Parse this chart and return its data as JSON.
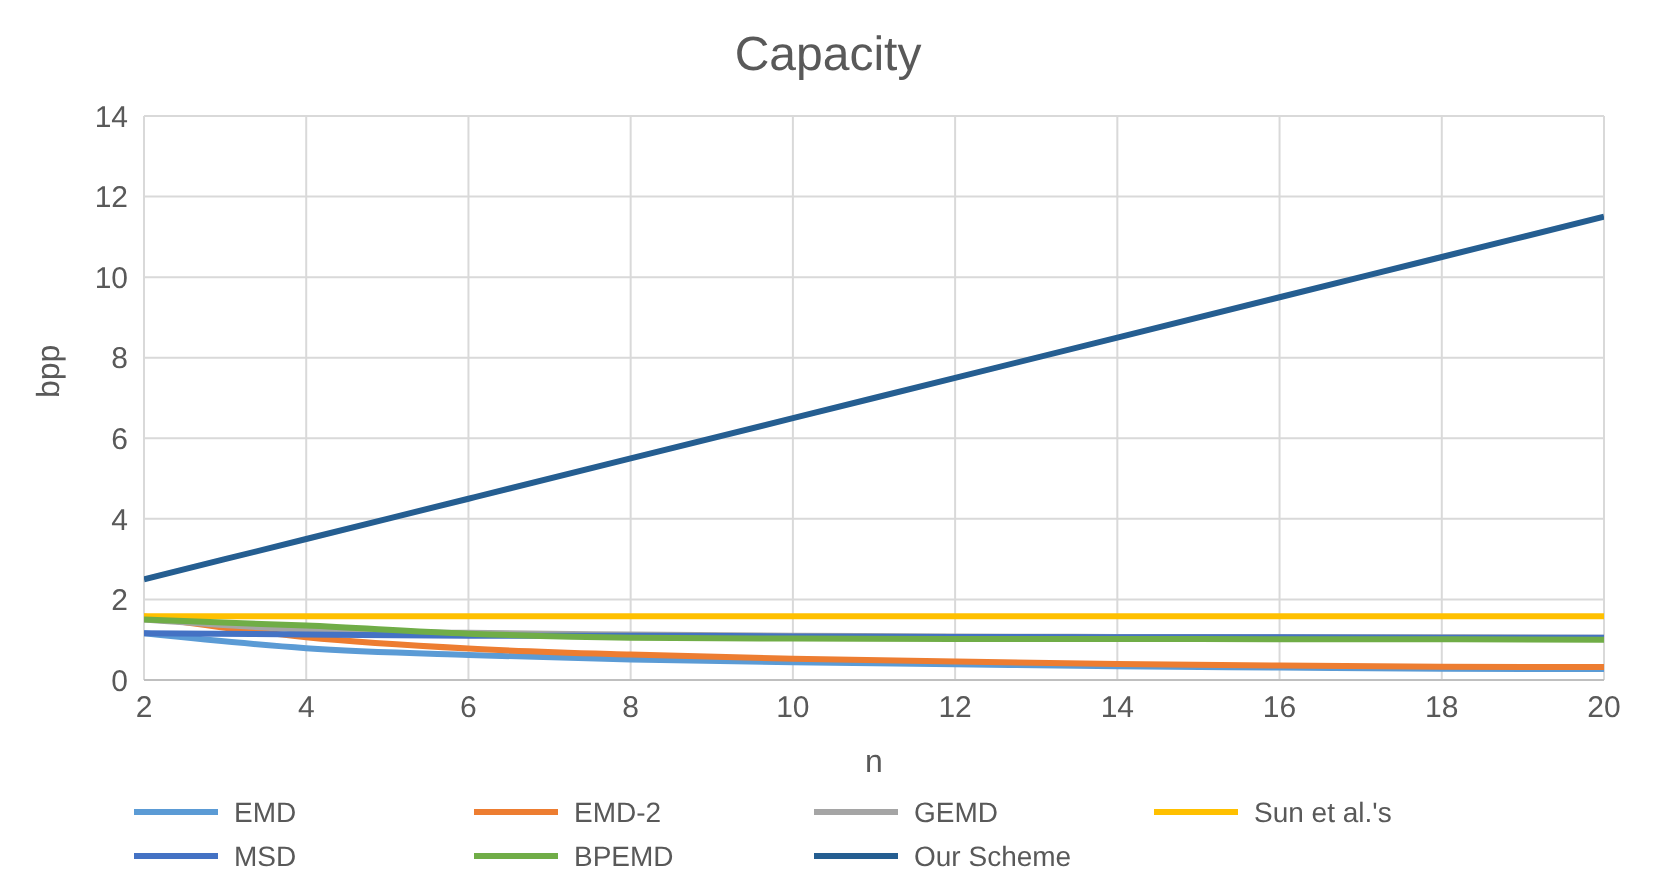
{
  "chart_data": {
    "type": "line",
    "title": "Capacity",
    "xlabel": "n",
    "ylabel": "bpp",
    "x": [
      2,
      4,
      6,
      8,
      10,
      12,
      14,
      16,
      18,
      20
    ],
    "series": [
      {
        "name": "EMD",
        "color": "#5b9bd5",
        "values": [
          1.16,
          0.79,
          0.62,
          0.51,
          0.44,
          0.39,
          0.34,
          0.31,
          0.28,
          0.27
        ]
      },
      {
        "name": "EMD-2",
        "color": "#ed7d31",
        "values": [
          1.58,
          1.06,
          0.78,
          0.63,
          0.53,
          0.46,
          0.4,
          0.36,
          0.33,
          0.32
        ]
      },
      {
        "name": "GEMD",
        "color": "#a5a5a5",
        "values": [
          1.5,
          1.25,
          1.17,
          1.13,
          1.1,
          1.08,
          1.07,
          1.06,
          1.06,
          1.05
        ]
      },
      {
        "name": "Sun et al.'s",
        "color": "#ffc000",
        "values": [
          1.58,
          1.58,
          1.58,
          1.58,
          1.58,
          1.58,
          1.58,
          1.58,
          1.58,
          1.58
        ]
      },
      {
        "name": "MSD",
        "color": "#4472c4",
        "values": [
          1.16,
          1.13,
          1.1,
          1.1,
          1.08,
          1.07,
          1.06,
          1.06,
          1.05,
          1.05
        ]
      },
      {
        "name": "BPEMD",
        "color": "#70ad47",
        "values": [
          1.5,
          1.35,
          1.15,
          1.05,
          1.03,
          1.02,
          1.02,
          1.01,
          1.01,
          1.0
        ]
      },
      {
        "name": "Our Scheme",
        "color": "#255e91",
        "values": [
          2.5,
          3.5,
          4.5,
          5.5,
          6.5,
          7.5,
          8.5,
          9.5,
          10.5,
          11.5
        ]
      }
    ],
    "xlim": [
      2,
      20
    ],
    "xticks": [
      2,
      4,
      6,
      8,
      10,
      12,
      14,
      16,
      18,
      20
    ],
    "ylim": [
      0,
      14
    ],
    "yticks": [
      0,
      2,
      4,
      6,
      8,
      10,
      12,
      14
    ],
    "grid": true,
    "legend": "bottom",
    "marker": "none",
    "line_style": "solid"
  }
}
